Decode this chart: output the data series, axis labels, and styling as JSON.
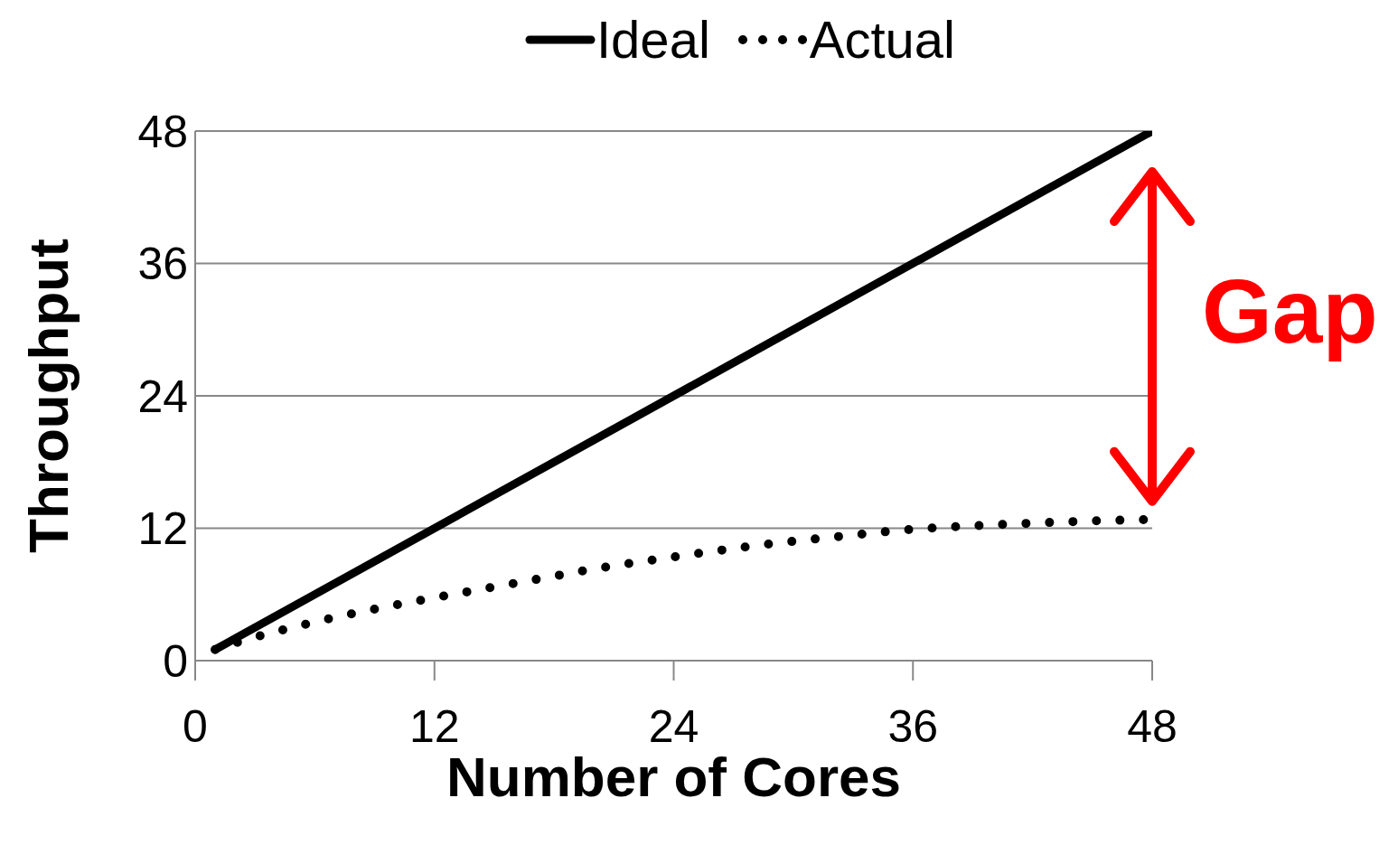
{
  "chart_data": {
    "type": "line",
    "xlabel": "Number of Cores",
    "ylabel": "Throughput",
    "xlim": [
      0,
      48
    ],
    "xticks": [
      0,
      12,
      24,
      36,
      48
    ],
    "ylim": [
      0,
      48
    ],
    "yticks": [
      0,
      12,
      24,
      36,
      48
    ],
    "grid": "y",
    "legend": "top",
    "marker": "none",
    "series": [
      {
        "name": "Ideal",
        "color": "#000000",
        "line_style": "solid",
        "x": [
          1,
          48
        ],
        "values": [
          1,
          48
        ]
      },
      {
        "name": "Actual",
        "color": "#000000",
        "line_style": "dotted",
        "x": [
          1,
          2,
          4,
          6,
          8,
          12,
          16,
          20,
          24,
          28,
          32,
          36,
          40,
          44,
          48
        ],
        "values": [
          1,
          1.6,
          2.6,
          3.5,
          4.3,
          5.7,
          7.0,
          8.3,
          9.4,
          10.4,
          11.2,
          11.9,
          12.3,
          12.6,
          12.8
        ]
      }
    ],
    "annotations": [
      "Gap"
    ]
  }
}
